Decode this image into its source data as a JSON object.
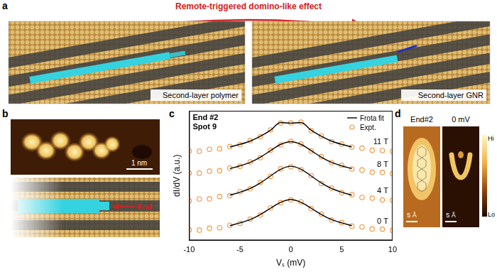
{
  "panel_labels": [
    "a",
    "b",
    "c",
    "d"
  ],
  "panel_a": {
    "title": "Remote-triggered domino-like effect",
    "left_label": "Second-layer polymer",
    "right_label": "Second-layer GNR"
  },
  "panel_b": {
    "scale_bar": "1 nm",
    "marker": "End"
  },
  "chart_data": {
    "type": "line",
    "title": "End #2",
    "subtitle": "Spot 9",
    "x_label": "Vₛ (mV)",
    "y_label": "dI/dV (a.u.)",
    "xlim": [
      -10,
      10
    ],
    "xticks": [
      -10,
      -5,
      0,
      5,
      10
    ],
    "ylim": [
      0,
      10.5
    ],
    "tick_labels": "x",
    "grid": false,
    "legend": "upper right",
    "fit": {
      "name": "Frota fit",
      "color": "#000000",
      "line_style": "solid"
    },
    "expt": {
      "name": "Expt.",
      "color": "#f39a45",
      "marker": "circle"
    },
    "x": [
      -10,
      -9,
      -8,
      -7,
      -6,
      -5,
      -4,
      -3,
      -2,
      -1,
      0,
      1,
      2,
      3,
      4,
      5,
      6,
      7,
      8,
      9,
      10
    ],
    "fit_x": [
      -6,
      -5,
      -4,
      -3,
      -2,
      -1,
      0,
      1,
      2,
      3,
      4,
      5,
      6
    ],
    "series": [
      {
        "name": "0 T",
        "values": [
          0.85,
          0.83,
          0.98,
          1.02,
          1.22,
          1.38,
          1.72,
          2.05,
          2.63,
          3.05,
          3.28,
          3.12,
          2.57,
          2.12,
          1.65,
          1.44,
          1.15,
          1.09,
          0.92,
          0.9,
          0.8
        ],
        "fit_values": [
          1.19,
          1.41,
          1.68,
          2.09,
          2.6,
          3.08,
          3.3,
          3.08,
          2.6,
          2.09,
          1.68,
          1.41,
          1.19
        ]
      },
      {
        "name": "4 T",
        "values": [
          3.2,
          3.35,
          3.36,
          3.55,
          3.62,
          3.94,
          4.18,
          4.7,
          5.18,
          5.8,
          5.97,
          5.74,
          5.25,
          4.6,
          4.23,
          3.86,
          3.7,
          3.48,
          3.42,
          3.27,
          3.25
        ],
        "fit_values": [
          3.66,
          3.9,
          4.2,
          4.65,
          5.22,
          5.76,
          6.0,
          5.76,
          5.22,
          4.65,
          4.2,
          3.9,
          3.66
        ]
      },
      {
        "name": "8 T",
        "values": [
          5.45,
          5.44,
          5.6,
          5.65,
          5.86,
          6.0,
          6.35,
          6.7,
          7.3,
          7.74,
          8.02,
          7.8,
          7.24,
          6.78,
          6.3,
          6.08,
          5.78,
          5.7,
          5.52,
          5.5,
          5.4
        ],
        "fit_values": [
          5.82,
          6.04,
          6.32,
          6.74,
          7.27,
          7.78,
          8.0,
          7.78,
          7.27,
          6.74,
          6.32,
          6.04,
          5.82
        ]
      },
      {
        "name": "11 T",
        "values": [
          7.25,
          7.22,
          7.38,
          7.42,
          7.6,
          7.75,
          8.08,
          8.4,
          8.95,
          9.5,
          9.52,
          9.58,
          8.88,
          8.46,
          8.0,
          7.8,
          7.55,
          7.47,
          7.3,
          7.28,
          7.2
        ],
        "fit_values": [
          7.57,
          7.78,
          8.04,
          8.43,
          8.92,
          9.55,
          9.5,
          9.55,
          8.92,
          8.43,
          8.04,
          7.78,
          7.57
        ]
      }
    ]
  },
  "panel_d": {
    "left_label": "End#2",
    "right_label": "0 mV",
    "scale_bar": "5 Å",
    "colorbar_high": "Hi",
    "colorbar_low": "Lo"
  }
}
